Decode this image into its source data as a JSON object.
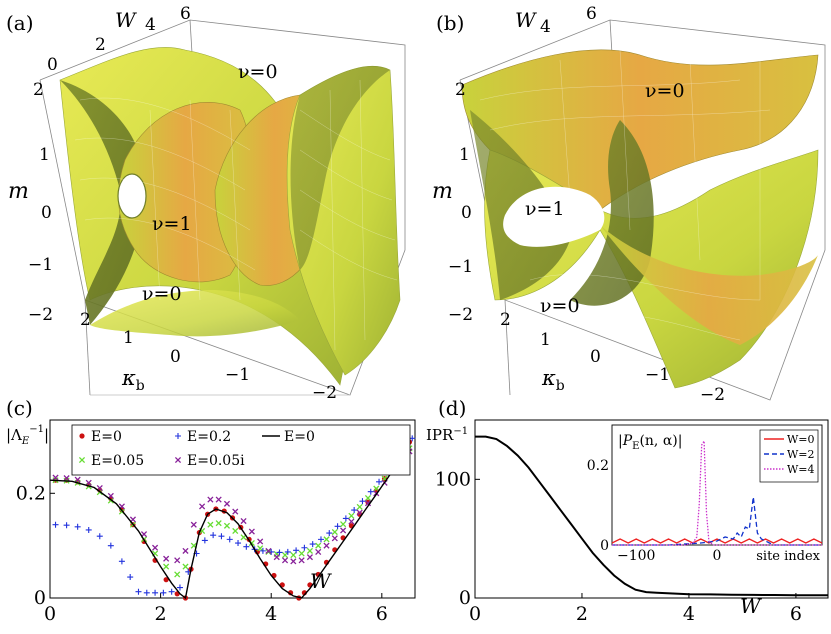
{
  "panels": {
    "a": {
      "label": "(a)",
      "axis_m": "m",
      "axis_w": "W",
      "axis_k": "κ",
      "axis_k_sub": "b",
      "w_ticks": [
        "0",
        "2",
        "4",
        "6"
      ],
      "m_ticks": [
        "2",
        "1",
        "0",
        "−1",
        "−2"
      ],
      "k_ticks": [
        "2",
        "1",
        "0",
        "−1",
        "−2"
      ],
      "regions": [
        "ν=0",
        "ν=1",
        "ν=0"
      ]
    },
    "b": {
      "label": "(b)",
      "axis_m": "m",
      "axis_w": "W",
      "axis_k": "κ",
      "axis_k_sub": "b",
      "w_ticks": [
        "6",
        "4"
      ],
      "m_ticks": [
        "2",
        "1",
        "0",
        "−1",
        "−2"
      ],
      "k_ticks": [
        "2",
        "1",
        "0",
        "−1",
        "−2"
      ],
      "regions": [
        "ν=0",
        "ν=1",
        "ν=0"
      ]
    },
    "c": {
      "label": "(c)"
    },
    "d": {
      "label": "(d)"
    }
  },
  "colors": {
    "surface_light": "#dfe64a",
    "surface_mid": "#b9cc3a",
    "surface_dark": "#6f7e2a",
    "surface_orange": "#e0a040",
    "red": "#cc1111",
    "green": "#66dd33",
    "blue": "#2233dd",
    "purple": "#882299",
    "black": "#000000",
    "inset_red": "#ee2222",
    "inset_blue": "#1133cc",
    "inset_magenta": "#cc33cc"
  },
  "chart_data": [
    {
      "panel": "c",
      "type": "scatter",
      "ylabel": "|Λ_E⁻¹|",
      "ylabel_parts": {
        "base": "|Λ",
        "sub": "E",
        "sup": "−1",
        "close": "|"
      },
      "xlabel": "W",
      "xlim": [
        0,
        6.6
      ],
      "ylim": [
        0,
        0.34
      ],
      "xticks": [
        "0",
        "2",
        "4",
        "6"
      ],
      "yticks": [
        "0",
        "0.2"
      ],
      "legend": {
        "placement": "top-center",
        "entries": [
          "E=0",
          "E=0.2",
          "E=0",
          "E=0.05",
          "E=0.05i"
        ]
      },
      "series": [
        {
          "name": "E=0",
          "marker": "dot",
          "color": "red",
          "x": [
            0.1,
            0.3,
            0.5,
            0.7,
            0.9,
            1.1,
            1.3,
            1.5,
            1.7,
            1.9,
            2.1,
            2.3,
            2.45,
            2.55,
            2.7,
            2.85,
            3.0,
            3.15,
            3.3,
            3.45,
            3.6,
            3.75,
            3.9,
            4.05,
            4.2,
            4.35,
            4.5,
            4.6,
            4.7,
            4.85,
            5.0,
            5.15,
            5.3,
            5.45,
            5.6,
            5.75,
            5.9,
            6.05,
            6.2,
            6.35,
            6.5
          ],
          "y": [
            0.225,
            0.225,
            0.222,
            0.216,
            0.206,
            0.19,
            0.168,
            0.14,
            0.108,
            0.072,
            0.035,
            0.008,
            0.0,
            0.055,
            0.125,
            0.16,
            0.17,
            0.166,
            0.153,
            0.135,
            0.112,
            0.088,
            0.065,
            0.043,
            0.025,
            0.01,
            0.0,
            0.01,
            0.025,
            0.045,
            0.068,
            0.092,
            0.115,
            0.138,
            0.16,
            0.183,
            0.205,
            0.228,
            0.252,
            0.275,
            0.298
          ]
        },
        {
          "name": "E=0.05",
          "marker": "x",
          "color": "green",
          "x": [
            0.1,
            0.3,
            0.5,
            0.7,
            0.9,
            1.1,
            1.3,
            1.5,
            1.7,
            1.9,
            2.1,
            2.3,
            2.45,
            2.6,
            2.75,
            2.9,
            3.05,
            3.2,
            3.35,
            3.5,
            3.65,
            3.8,
            3.95,
            4.1,
            4.25,
            4.4,
            4.55,
            4.7,
            4.85,
            5.0,
            5.15,
            5.3,
            5.45,
            5.6,
            5.75,
            5.9,
            6.05,
            6.2,
            6.35,
            6.5
          ],
          "y": [
            0.225,
            0.224,
            0.22,
            0.213,
            0.202,
            0.186,
            0.165,
            0.14,
            0.112,
            0.085,
            0.06,
            0.045,
            0.06,
            0.1,
            0.128,
            0.14,
            0.143,
            0.138,
            0.128,
            0.116,
            0.105,
            0.095,
            0.088,
            0.084,
            0.082,
            0.082,
            0.085,
            0.09,
            0.1,
            0.112,
            0.126,
            0.141,
            0.157,
            0.174,
            0.191,
            0.209,
            0.228,
            0.247,
            0.266,
            0.286
          ]
        },
        {
          "name": "E=0.2",
          "marker": "plus",
          "color": "blue",
          "x": [
            0.1,
            0.3,
            0.5,
            0.7,
            0.9,
            1.1,
            1.3,
            1.45,
            1.6,
            1.75,
            1.9,
            2.05,
            2.2,
            2.35,
            2.5,
            2.65,
            2.8,
            2.95,
            3.1,
            3.25,
            3.4,
            3.55,
            3.7,
            3.85,
            4.0,
            4.15,
            4.3,
            4.45,
            4.6,
            4.75,
            4.9,
            5.05,
            5.2,
            5.35,
            5.5,
            5.65,
            5.8,
            5.95,
            6.1,
            6.25,
            6.4,
            6.55
          ],
          "y": [
            0.14,
            0.139,
            0.136,
            0.13,
            0.118,
            0.1,
            0.07,
            0.04,
            0.012,
            0.01,
            0.01,
            0.01,
            0.012,
            0.02,
            0.05,
            0.085,
            0.11,
            0.12,
            0.118,
            0.112,
            0.105,
            0.098,
            0.093,
            0.09,
            0.088,
            0.087,
            0.088,
            0.091,
            0.096,
            0.103,
            0.112,
            0.124,
            0.137,
            0.152,
            0.168,
            0.185,
            0.203,
            0.222,
            0.242,
            0.262,
            0.283,
            0.305
          ]
        },
        {
          "name": "E=0.05i",
          "marker": "x",
          "color": "purple",
          "x": [
            0.1,
            0.3,
            0.5,
            0.7,
            0.9,
            1.1,
            1.3,
            1.5,
            1.7,
            1.9,
            2.1,
            2.3,
            2.45,
            2.6,
            2.75,
            2.9,
            3.05,
            3.2,
            3.35,
            3.5,
            3.65,
            3.8,
            3.95,
            4.1,
            4.25,
            4.4,
            4.55,
            4.7,
            4.85,
            5.0,
            5.15,
            5.3,
            5.45,
            5.6,
            5.75,
            5.9,
            6.05,
            6.2,
            6.35,
            6.5
          ],
          "y": [
            0.23,
            0.229,
            0.226,
            0.22,
            0.21,
            0.195,
            0.175,
            0.15,
            0.122,
            0.096,
            0.075,
            0.072,
            0.09,
            0.14,
            0.175,
            0.188,
            0.188,
            0.18,
            0.165,
            0.147,
            0.127,
            0.108,
            0.09,
            0.078,
            0.072,
            0.07,
            0.072,
            0.078,
            0.088,
            0.1,
            0.114,
            0.129,
            0.146,
            0.163,
            0.181,
            0.2,
            0.22,
            0.24,
            0.26,
            0.28
          ]
        },
        {
          "name": "E=0",
          "marker": "line",
          "color": "black",
          "x": [
            0,
            0.4,
            0.8,
            1.2,
            1.6,
            2.0,
            2.2,
            2.35,
            2.45,
            2.55,
            2.7,
            2.85,
            3.0,
            3.2,
            3.4,
            3.6,
            3.8,
            4.0,
            4.2,
            4.4,
            4.55,
            4.7,
            4.9,
            5.1,
            5.3,
            5.5,
            5.7,
            5.9,
            6.1,
            6.3,
            6.5
          ],
          "y": [
            0.225,
            0.223,
            0.211,
            0.18,
            0.128,
            0.06,
            0.028,
            0.008,
            0.0,
            0.055,
            0.125,
            0.16,
            0.17,
            0.163,
            0.142,
            0.11,
            0.075,
            0.043,
            0.018,
            0.004,
            0.0,
            0.018,
            0.048,
            0.078,
            0.108,
            0.138,
            0.168,
            0.198,
            0.228,
            0.26,
            0.292
          ]
        }
      ]
    },
    {
      "panel": "d",
      "type": "line",
      "ylabel": "IPR⁻¹",
      "ylabel_parts": {
        "base": "IPR",
        "sup": "−1"
      },
      "xlabel": "W",
      "xlim": [
        0,
        6.6
      ],
      "ylim": [
        0,
        150
      ],
      "xticks": [
        "0",
        "2",
        "4",
        "6"
      ],
      "yticks": [
        "0",
        "100"
      ],
      "series": [
        {
          "name": "",
          "color": "black",
          "x": [
            0,
            0.2,
            0.4,
            0.6,
            0.8,
            1.0,
            1.2,
            1.4,
            1.6,
            1.8,
            2.0,
            2.2,
            2.4,
            2.6,
            2.8,
            3.0,
            3.2,
            3.4,
            3.6,
            3.8,
            4.0,
            4.4,
            4.8,
            5.2,
            5.6,
            6.0,
            6.4,
            6.6
          ],
          "y": [
            136,
            136,
            134,
            128,
            120,
            110,
            98,
            86,
            74,
            62,
            50,
            38,
            28,
            19,
            12,
            7,
            5,
            4.5,
            4,
            3.5,
            3.2,
            3,
            2.8,
            2.6,
            2.5,
            2.4,
            2.3,
            2.3
          ]
        }
      ],
      "inset": {
        "type": "line",
        "ylabel": "|P_E(n,α)|",
        "ylabel_parts": {
          "open": "|",
          "base": "P",
          "sub": "E",
          "rest": "(n, α)",
          "close": "|"
        },
        "xlabel": "site index",
        "xlim": [
          -130,
          130
        ],
        "ylim": [
          0,
          0.3
        ],
        "xticks": [
          "−100",
          "0"
        ],
        "yticks": [
          "0",
          "0.2"
        ],
        "legend": {
          "placement": "top-right",
          "entries": [
            "W=0",
            "W=2",
            "W=4"
          ]
        },
        "series": [
          {
            "name": "W=0",
            "color": "inset_red",
            "x": [
              -130,
              -120,
              -110,
              -100,
              -90,
              -80,
              -70,
              -60,
              -50,
              -40,
              -30,
              -20,
              -10,
              0,
              10,
              20,
              30,
              40,
              50,
              60,
              70,
              80,
              90,
              100,
              110,
              120,
              130
            ],
            "y": [
              0.005,
              0.015,
              0.005,
              0.015,
              0.005,
              0.015,
              0.005,
              0.015,
              0.005,
              0.015,
              0.005,
              0.015,
              0.005,
              0.015,
              0.005,
              0.015,
              0.005,
              0.015,
              0.005,
              0.015,
              0.005,
              0.015,
              0.005,
              0.015,
              0.005,
              0.015,
              0.005
            ]
          },
          {
            "name": "W=2",
            "color": "inset_blue",
            "x": [
              -130,
              -60,
              -20,
              0,
              10,
              20,
              25,
              30,
              35,
              40,
              45,
              50,
              55,
              60,
              65,
              70,
              80,
              130
            ],
            "y": [
              0.0,
              0.0,
              0.005,
              0.01,
              0.02,
              0.015,
              0.03,
              0.02,
              0.045,
              0.04,
              0.12,
              0.03,
              0.015,
              0.01,
              0.005,
              0.0,
              0.0,
              0.0
            ]
          },
          {
            "name": "W=4",
            "color": "inset_magenta",
            "x": [
              -130,
              -40,
              -30,
              -25,
              -22,
              -19,
              -16,
              -13,
              -10,
              -5,
              0,
              130
            ],
            "y": [
              0.0,
              0.0,
              0.005,
              0.02,
              0.1,
              0.25,
              0.26,
              0.08,
              0.01,
              0.0,
              0.0,
              0.0
            ]
          }
        ]
      }
    }
  ]
}
